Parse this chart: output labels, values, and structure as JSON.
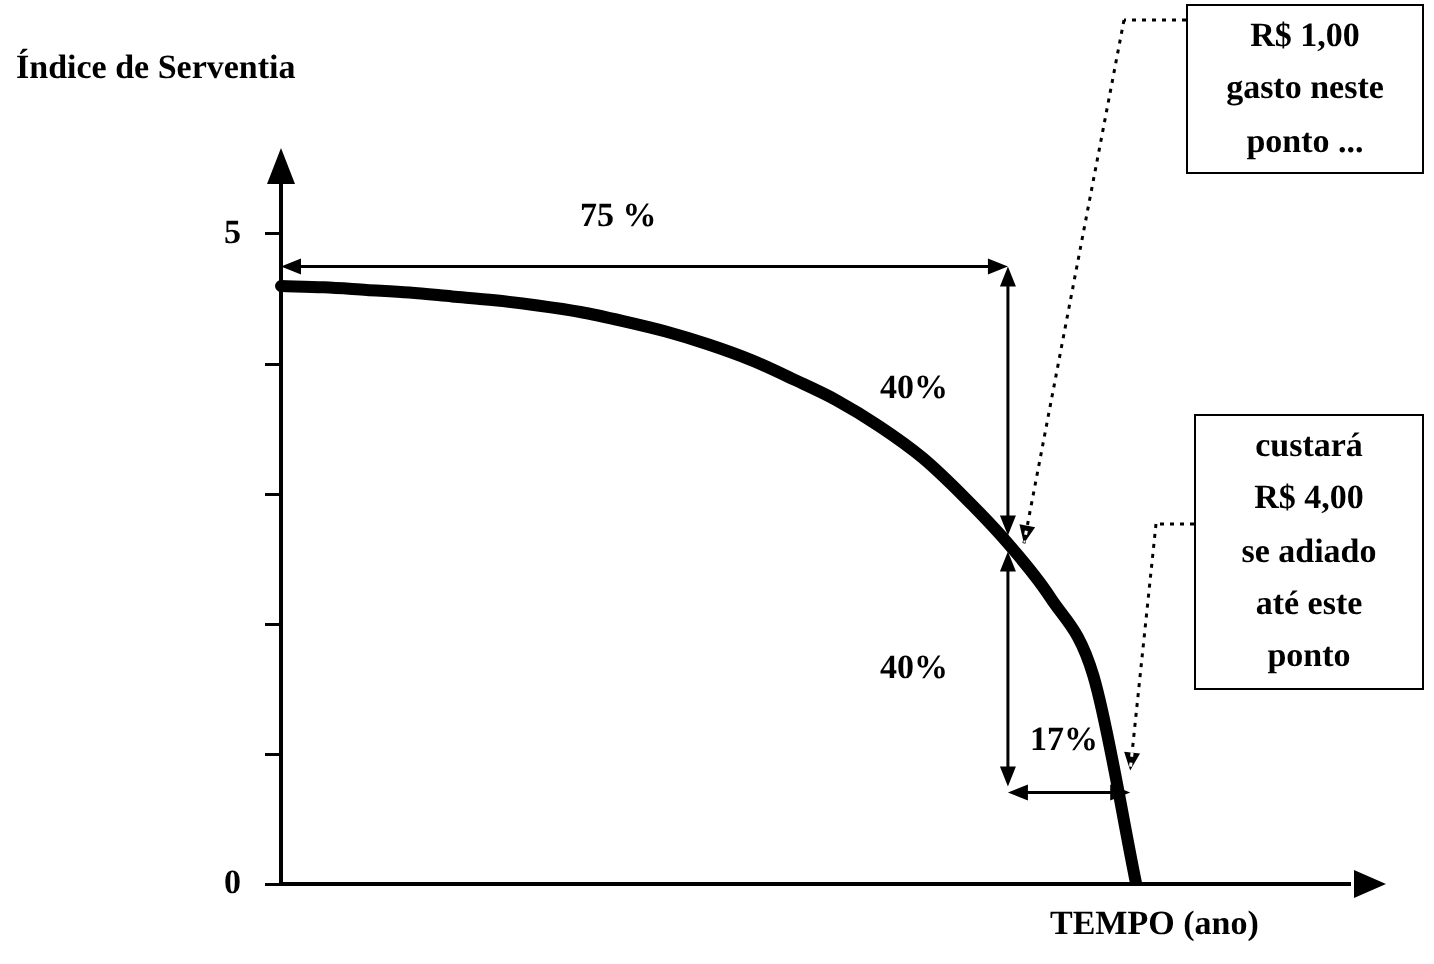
{
  "chart_data": {
    "type": "line",
    "title": "Índice de Serventia",
    "xlabel": "TEMPO (ano)",
    "categories": [
      null,
      null,
      null,
      null,
      null,
      null,
      null,
      null,
      null,
      null,
      null,
      null,
      null,
      null,
      null,
      null,
      null,
      null,
      null,
      null,
      null,
      null,
      null,
      null,
      null,
      null
    ],
    "values": [
      4.6,
      4.59,
      4.57,
      4.55,
      4.52,
      4.49,
      4.45,
      4.4,
      4.33,
      4.25,
      4.15,
      4.03,
      3.88,
      3.72,
      3.52,
      3.28,
      2.97,
      2.62,
      2.2,
      1.6,
      0,
      null,
      null,
      null,
      null,
      null
    ],
    "color": "#000000",
    "ylim": [
      0,
      5.6
    ],
    "yticks": [
      0,
      {
        "value": 1,
        "label": null
      },
      {
        "value": 2,
        "label": null
      },
      {
        "value": 3,
        "label": null
      },
      {
        "value": 4,
        "label": null
      },
      5
    ],
    "tick_labels": "y",
    "grid": false,
    "legend": false,
    "marker": "none",
    "line_style": "solid",
    "annotations": [
      "75 %",
      "40%",
      "40%",
      "17%",
      "R$ 1,00\ngasto neste\nponto ...",
      "custará\nR$ 4,00\nse adiado\naté este\nponto"
    ]
  }
}
